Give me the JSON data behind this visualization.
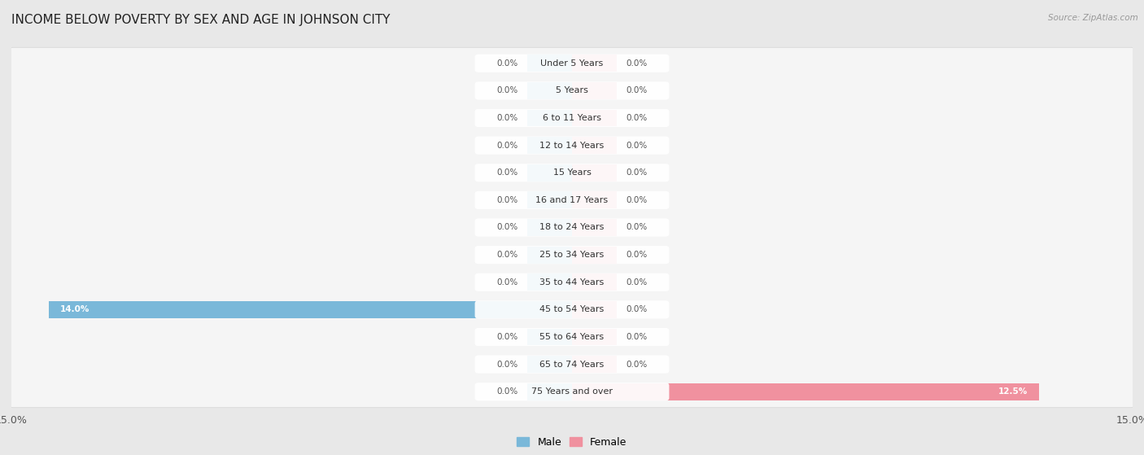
{
  "title": "INCOME BELOW POVERTY BY SEX AND AGE IN JOHNSON CITY",
  "source": "Source: ZipAtlas.com",
  "categories": [
    "Under 5 Years",
    "5 Years",
    "6 to 11 Years",
    "12 to 14 Years",
    "15 Years",
    "16 and 17 Years",
    "18 to 24 Years",
    "25 to 34 Years",
    "35 to 44 Years",
    "45 to 54 Years",
    "55 to 64 Years",
    "65 to 74 Years",
    "75 Years and over"
  ],
  "male_values": [
    0.0,
    0.0,
    0.0,
    0.0,
    0.0,
    0.0,
    0.0,
    0.0,
    0.0,
    14.0,
    0.0,
    0.0,
    0.0
  ],
  "female_values": [
    0.0,
    0.0,
    0.0,
    0.0,
    0.0,
    0.0,
    0.0,
    0.0,
    0.0,
    0.0,
    0.0,
    0.0,
    12.5
  ],
  "male_color": "#7ab8d9",
  "female_color": "#f0919f",
  "xlim": 15.0,
  "background_color": "#e8e8e8",
  "row_bg_color": "#f5f5f5",
  "row_border_color": "#d0d0d0",
  "title_fontsize": 11,
  "stub_size": 1.2,
  "legend_male_color": "#7ab8d9",
  "legend_female_color": "#f0919f"
}
